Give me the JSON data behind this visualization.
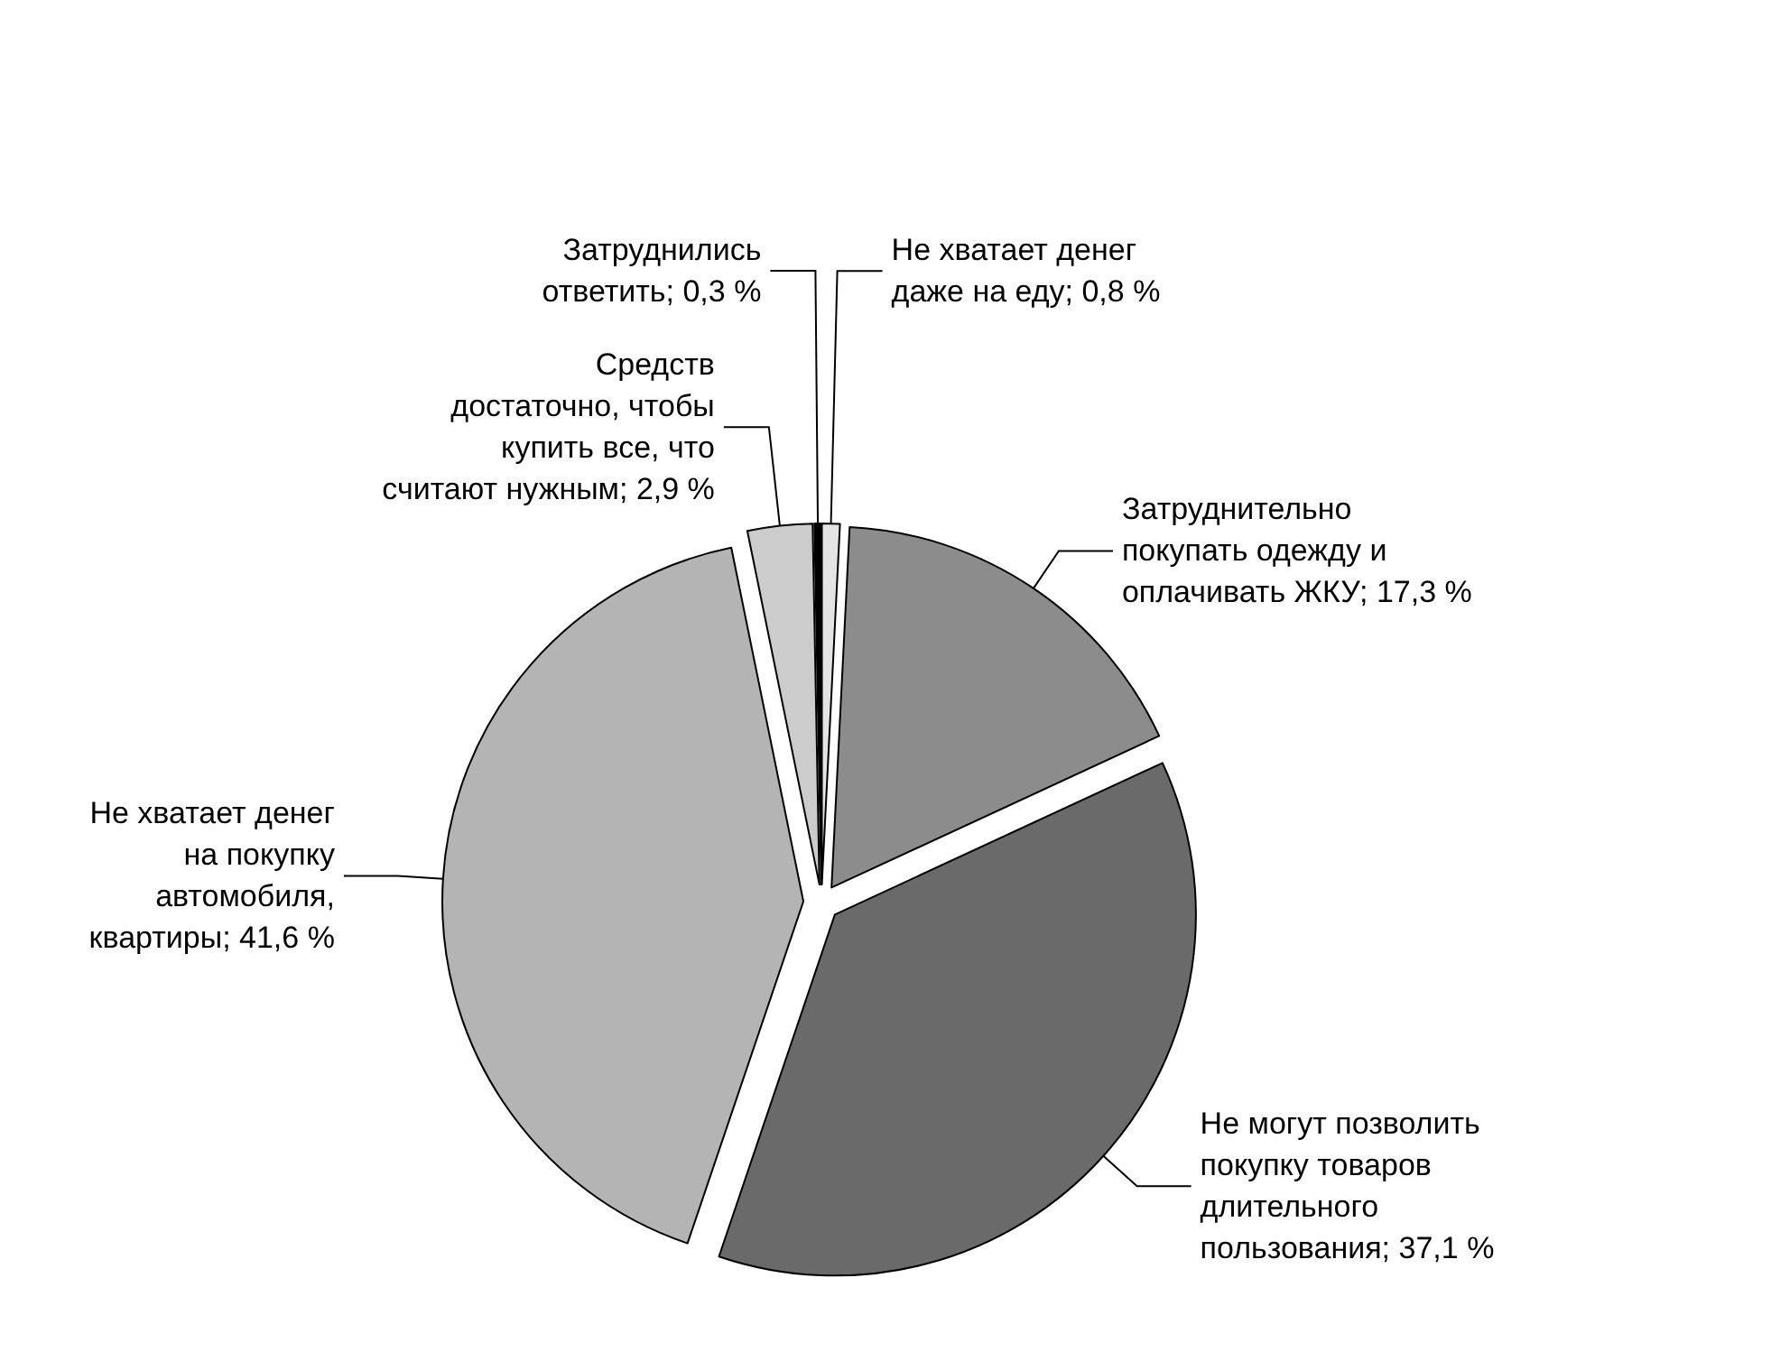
{
  "chart_data": {
    "type": "pie",
    "categories": [
      "Не хватает денег даже на еду",
      "Затруднительно покупать одежду и оплачивать ЖКУ",
      "Не могут позволить покупку товаров длительного пользования",
      "Не хватает денег на покупку автомобиля, квартиры",
      "Средств достаточно, чтобы купить все, что считают нужным",
      "Затруднились ответить"
    ],
    "values": [
      0.8,
      17.3,
      37.1,
      41.6,
      2.9,
      0.3
    ],
    "value_labels": [
      "0,8 %",
      "17,3 %",
      "37,1 %",
      "41,6 %",
      "2,9 %",
      "0,3 %"
    ],
    "colors": [
      "#e4e4e4",
      "#8c8c8c",
      "#6a6a6a",
      "#b4b4b4",
      "#cccccc",
      "#000000"
    ],
    "legend": false
  }
}
